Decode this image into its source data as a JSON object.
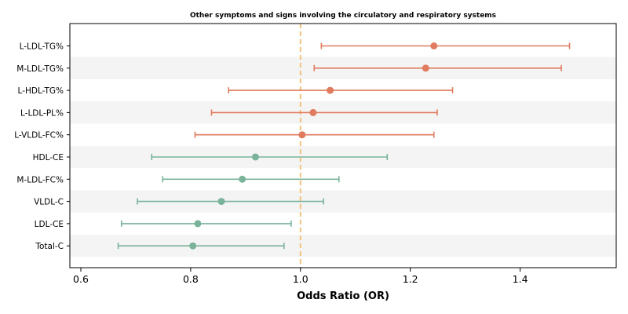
{
  "chart_data": {
    "type": "forest",
    "title": "Other symptoms and signs involving the circulatory and respiratory systems",
    "xlabel": "Odds Ratio (OR)",
    "ylabel": "",
    "xlim": [
      0.58,
      1.575
    ],
    "xticks": [
      0.6,
      0.8,
      1.0,
      1.2,
      1.4
    ],
    "xtick_labels": [
      "0.6",
      "0.8",
      "1.0",
      "1.2",
      "1.4"
    ],
    "reference_line": 1.0,
    "grid": false,
    "colors": {
      "positive": "#e07b5f",
      "negative": "#7ab39a",
      "reference": "#f2c27b",
      "band": "#f4f4f4"
    },
    "rows": [
      {
        "label": "L-LDL-TG%",
        "or": 1.243,
        "lower": 1.038,
        "upper": 1.49,
        "group": "positive"
      },
      {
        "label": "M-LDL-TG%",
        "or": 1.228,
        "lower": 1.025,
        "upper": 1.475,
        "group": "positive"
      },
      {
        "label": "L-HDL-TG%",
        "or": 1.054,
        "lower": 0.869,
        "upper": 1.277,
        "group": "positive"
      },
      {
        "label": "L-LDL-PL%",
        "or": 1.023,
        "lower": 0.838,
        "upper": 1.249,
        "group": "positive"
      },
      {
        "label": "L-VLDL-FC%",
        "or": 1.003,
        "lower": 0.808,
        "upper": 1.243,
        "group": "positive"
      },
      {
        "label": "HDL-CE",
        "or": 0.918,
        "lower": 0.729,
        "upper": 1.158,
        "group": "negative"
      },
      {
        "label": "M-LDL-FC%",
        "or": 0.894,
        "lower": 0.749,
        "upper": 1.07,
        "group": "negative"
      },
      {
        "label": "VLDL-C",
        "or": 0.856,
        "lower": 0.703,
        "upper": 1.042,
        "group": "negative"
      },
      {
        "label": "LDL-CE",
        "or": 0.813,
        "lower": 0.674,
        "upper": 0.983,
        "group": "negative"
      },
      {
        "label": "Total-C",
        "or": 0.804,
        "lower": 0.668,
        "upper": 0.97,
        "group": "negative"
      }
    ]
  }
}
